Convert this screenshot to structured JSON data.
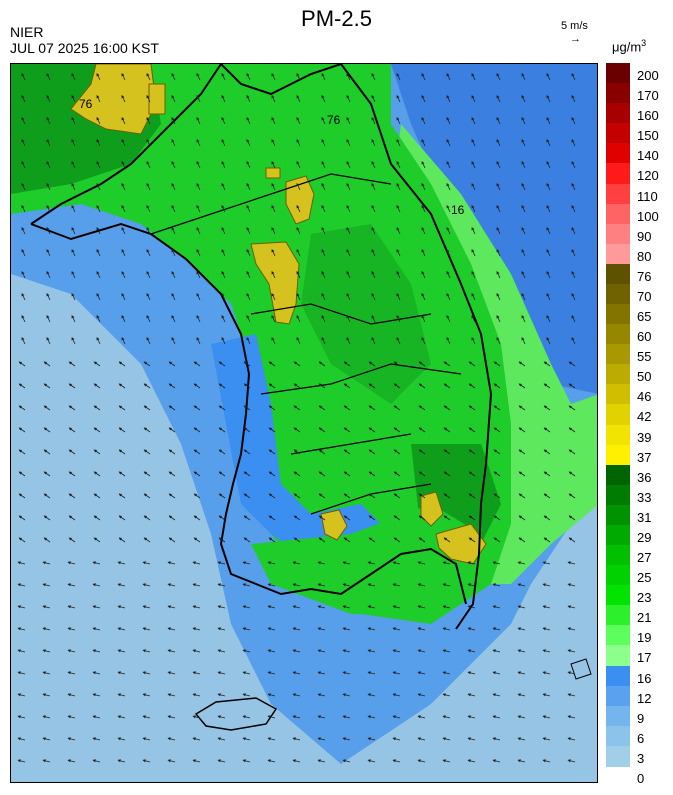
{
  "header": {
    "title": "PM-2.5",
    "org": "NIER",
    "timestamp": "JUL 07 2025 16:00 KST",
    "wind_scale_label": "5 m/s",
    "wind_scale_arrow": "→",
    "unit_base": "μg/m",
    "unit_exp": "3"
  },
  "map": {
    "contour_labels": [
      "76",
      "76",
      "16"
    ],
    "colors": {
      "sea": "#95c4e4",
      "low_blue": "#4d99ec",
      "mid_blue": "#3b7fe0",
      "green_light": "#5de85d",
      "green": "#1ecc2a",
      "green_dark": "#0f9e1c",
      "yellow": "#d6c21e",
      "coast": "#000000"
    }
  },
  "colorbar": {
    "labels": [
      "200",
      "170",
      "160",
      "150",
      "140",
      "120",
      "110",
      "100",
      "90",
      "80",
      "76",
      "70",
      "65",
      "60",
      "55",
      "50",
      "46",
      "42",
      "39",
      "37",
      "36",
      "33",
      "31",
      "29",
      "27",
      "25",
      "23",
      "21",
      "19",
      "17",
      "16",
      "12",
      "9",
      "6",
      "3",
      "0"
    ],
    "segments": [
      {
        "color": "#6b0000"
      },
      {
        "color": "#8a0000"
      },
      {
        "color": "#a80000"
      },
      {
        "color": "#c40000"
      },
      {
        "color": "#e00000"
      },
      {
        "color": "#ff1a1a"
      },
      {
        "color": "#ff4040"
      },
      {
        "color": "#ff6464"
      },
      {
        "color": "#ff8080"
      },
      {
        "color": "#ff9a9a"
      },
      {
        "color": "#5e5200"
      },
      {
        "color": "#706200"
      },
      {
        "color": "#837400"
      },
      {
        "color": "#968600"
      },
      {
        "color": "#a99800"
      },
      {
        "color": "#bcab00"
      },
      {
        "color": "#cfbf00"
      },
      {
        "color": "#e1d300"
      },
      {
        "color": "#f0e400"
      },
      {
        "color": "#fff000"
      },
      {
        "color": "#006400"
      },
      {
        "color": "#007c00"
      },
      {
        "color": "#009300"
      },
      {
        "color": "#00aa00"
      },
      {
        "color": "#00c000"
      },
      {
        "color": "#00d200"
      },
      {
        "color": "#00e400"
      },
      {
        "color": "#2cf02c"
      },
      {
        "color": "#5cff5c"
      },
      {
        "color": "#8cff8c"
      },
      {
        "color": "#3b8ff0"
      },
      {
        "color": "#5aa2f0"
      },
      {
        "color": "#74b4ef"
      },
      {
        "color": "#8cc3ea"
      },
      {
        "color": "#a2cfe8"
      }
    ]
  }
}
